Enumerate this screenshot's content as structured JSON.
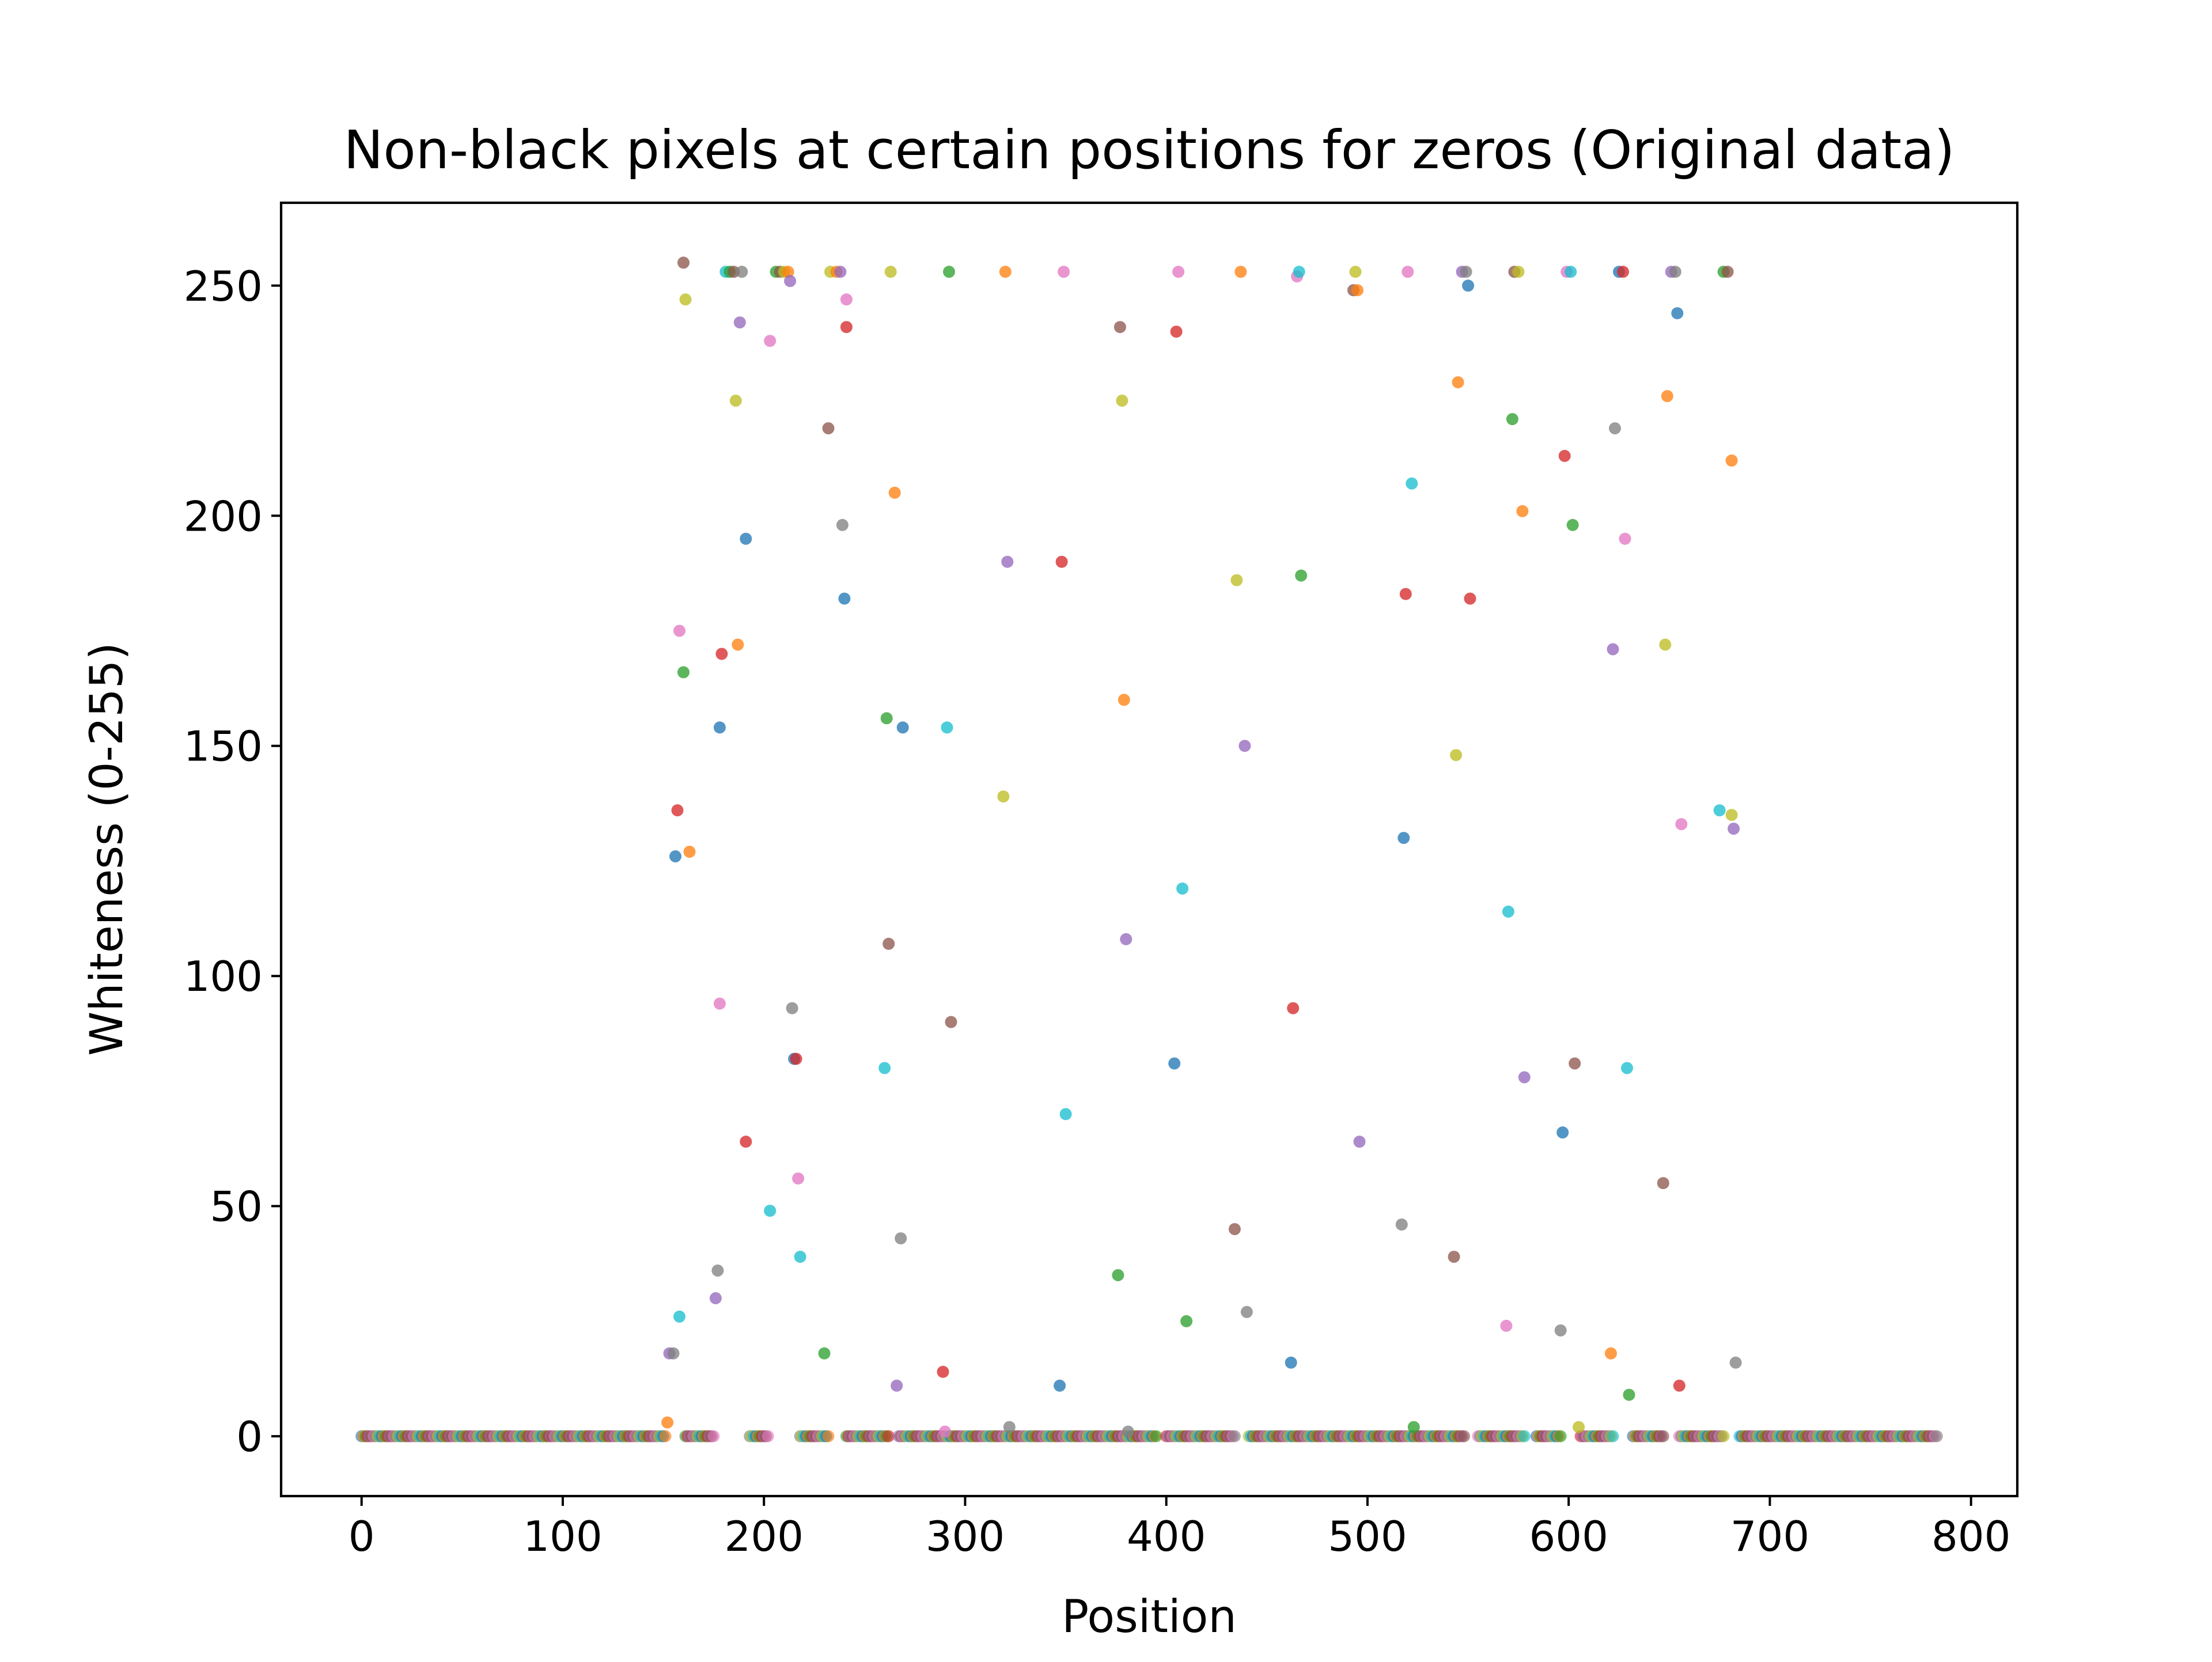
{
  "chart_data": {
    "type": "scatter",
    "title": "Non-black pixels at certain positions for zeros (Original data)",
    "xlabel": "Position",
    "ylabel": "Whiteness (0-255)",
    "xlim": [
      -40,
      823
    ],
    "ylim": [
      -13,
      268
    ],
    "xticks": [
      0,
      100,
      200,
      300,
      400,
      500,
      600,
      700,
      800
    ],
    "yticks": [
      0,
      50,
      100,
      150,
      200,
      250
    ],
    "grid": false,
    "legend": "none",
    "zero_baseline": {
      "x_ranges": [
        [
          0,
          151
        ],
        [
          161,
          175
        ],
        [
          193,
          202
        ],
        [
          218,
          232
        ],
        [
          241,
          262
        ],
        [
          267,
          395
        ],
        [
          400,
          434
        ],
        [
          441,
          548
        ],
        [
          555,
          578
        ],
        [
          584,
          596
        ],
        [
          606,
          622
        ],
        [
          632,
          647
        ],
        [
          655,
          677
        ],
        [
          685,
          783
        ]
      ],
      "step": 1
    },
    "points": [
      [
        152,
        3
      ],
      [
        153,
        18
      ],
      [
        155,
        18
      ],
      [
        156,
        126
      ],
      [
        157,
        136
      ],
      [
        158,
        175
      ],
      [
        158,
        26
      ],
      [
        160,
        166
      ],
      [
        160,
        255
      ],
      [
        161,
        247
      ],
      [
        163,
        127
      ],
      [
        176,
        30
      ],
      [
        177,
        36
      ],
      [
        178,
        154
      ],
      [
        179,
        170
      ],
      [
        178,
        94
      ],
      [
        181,
        253
      ],
      [
        183,
        253
      ],
      [
        185,
        253
      ],
      [
        186,
        225
      ],
      [
        187,
        172
      ],
      [
        188,
        242
      ],
      [
        189,
        253
      ],
      [
        191,
        195
      ],
      [
        191,
        64
      ],
      [
        203,
        238
      ],
      [
        203,
        49
      ],
      [
        206,
        253
      ],
      [
        208,
        253
      ],
      [
        210,
        253
      ],
      [
        212,
        253
      ],
      [
        213,
        251
      ],
      [
        214,
        93
      ],
      [
        215,
        82
      ],
      [
        216,
        82
      ],
      [
        217,
        56
      ],
      [
        218,
        39
      ],
      [
        230,
        18
      ],
      [
        232,
        219
      ],
      [
        233,
        253
      ],
      [
        236,
        253
      ],
      [
        238,
        253
      ],
      [
        239,
        198
      ],
      [
        240,
        182
      ],
      [
        241,
        241
      ],
      [
        241,
        247
      ],
      [
        260,
        80
      ],
      [
        261,
        156
      ],
      [
        262,
        107
      ],
      [
        263,
        253
      ],
      [
        265,
        205
      ],
      [
        266,
        11
      ],
      [
        268,
        43
      ],
      [
        269,
        154
      ],
      [
        289,
        14
      ],
      [
        290,
        1
      ],
      [
        291,
        154
      ],
      [
        292,
        253
      ],
      [
        293,
        90
      ],
      [
        319,
        139
      ],
      [
        320,
        253
      ],
      [
        321,
        190
      ],
      [
        322,
        2
      ],
      [
        347,
        11
      ],
      [
        348,
        190
      ],
      [
        349,
        253
      ],
      [
        350,
        70
      ],
      [
        376,
        35
      ],
      [
        377,
        241
      ],
      [
        378,
        225
      ],
      [
        379,
        160
      ],
      [
        380,
        108
      ],
      [
        381,
        1
      ],
      [
        404,
        81
      ],
      [
        405,
        240
      ],
      [
        406,
        253
      ],
      [
        408,
        119
      ],
      [
        410,
        25
      ],
      [
        434,
        45
      ],
      [
        435,
        186
      ],
      [
        437,
        253
      ],
      [
        439,
        150
      ],
      [
        440,
        27
      ],
      [
        462,
        16
      ],
      [
        463,
        93
      ],
      [
        465,
        252
      ],
      [
        466,
        253
      ],
      [
        467,
        187
      ],
      [
        493,
        249
      ],
      [
        494,
        253
      ],
      [
        495,
        249
      ],
      [
        496,
        64
      ],
      [
        517,
        46
      ],
      [
        518,
        130
      ],
      [
        519,
        183
      ],
      [
        520,
        253
      ],
      [
        522,
        207
      ],
      [
        523,
        2
      ],
      [
        543,
        39
      ],
      [
        544,
        148
      ],
      [
        545,
        229
      ],
      [
        547,
        253
      ],
      [
        549,
        253
      ],
      [
        550,
        250
      ],
      [
        551,
        182
      ],
      [
        569,
        24
      ],
      [
        570,
        114
      ],
      [
        572,
        221
      ],
      [
        573,
        253
      ],
      [
        575,
        253
      ],
      [
        577,
        201
      ],
      [
        578,
        78
      ],
      [
        596,
        23
      ],
      [
        597,
        66
      ],
      [
        598,
        213
      ],
      [
        599,
        253
      ],
      [
        601,
        253
      ],
      [
        602,
        198
      ],
      [
        603,
        81
      ],
      [
        605,
        2
      ],
      [
        621,
        18
      ],
      [
        622,
        171
      ],
      [
        623,
        219
      ],
      [
        625,
        253
      ],
      [
        627,
        253
      ],
      [
        628,
        195
      ],
      [
        629,
        80
      ],
      [
        630,
        9
      ],
      [
        647,
        55
      ],
      [
        648,
        172
      ],
      [
        649,
        226
      ],
      [
        651,
        253
      ],
      [
        653,
        253
      ],
      [
        654,
        244
      ],
      [
        655,
        11
      ],
      [
        656,
        133
      ],
      [
        675,
        136
      ],
      [
        677,
        253
      ],
      [
        679,
        253
      ],
      [
        681,
        135
      ],
      [
        681,
        212
      ],
      [
        682,
        132
      ],
      [
        683,
        16
      ]
    ],
    "colors": [
      "#1f77b4",
      "#ff7f0e",
      "#2ca02c",
      "#d62728",
      "#9467bd",
      "#8c564b",
      "#e377c2",
      "#7f7f7f",
      "#bcbd22",
      "#17becf"
    ],
    "marker_opacity": 0.62
  }
}
